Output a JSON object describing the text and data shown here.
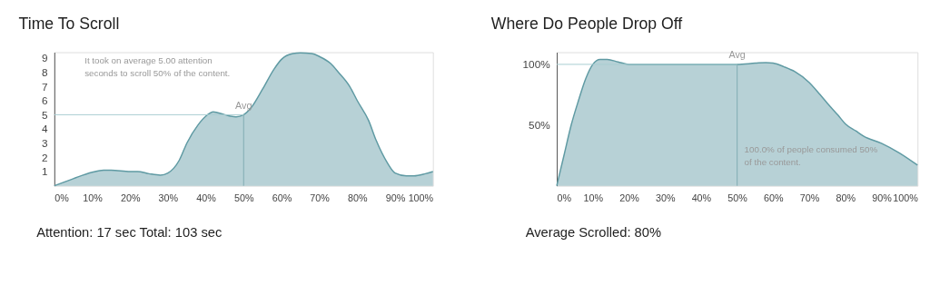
{
  "chart_data": [
    {
      "type": "area",
      "title": "Time To Scroll",
      "x": [
        0,
        5,
        10,
        13,
        15,
        20,
        22,
        25,
        28,
        30,
        33,
        35,
        38,
        40,
        42,
        45,
        48,
        50,
        52,
        55,
        58,
        60,
        63,
        65,
        68,
        70,
        73,
        75,
        78,
        80,
        83,
        85,
        88,
        90,
        93,
        95,
        98,
        100
      ],
      "series": [
        {
          "color": "#5f9aa3",
          "values": [
            0,
            0.5,
            0.95,
            1.1,
            1.1,
            1.0,
            1.0,
            0.85,
            0.75,
            0.9,
            1.8,
            3.0,
            4.3,
            4.9,
            5.2,
            5.0,
            4.85,
            5.0,
            5.5,
            6.8,
            8.2,
            8.9,
            9.3,
            9.35,
            9.3,
            9.1,
            8.6,
            8.0,
            7.0,
            6.0,
            4.6,
            3.2,
            1.6,
            0.9,
            0.7,
            0.7,
            0.85,
            1.0
          ]
        }
      ],
      "xlim": [
        0,
        100
      ],
      "xticks": [
        {
          "value": 0,
          "label": "0%"
        },
        {
          "value": 10,
          "label": "10%"
        },
        {
          "value": 20,
          "label": "20%"
        },
        {
          "value": 30,
          "label": "30%"
        },
        {
          "value": 40,
          "label": "40%"
        },
        {
          "value": 50,
          "label": "50%"
        },
        {
          "value": 60,
          "label": "60%"
        },
        {
          "value": 70,
          "label": "70%"
        },
        {
          "value": 80,
          "label": "80%"
        },
        {
          "value": 90,
          "label": "90%"
        },
        {
          "value": 100,
          "label": "100%"
        }
      ],
      "ylim": [
        0,
        9.4
      ],
      "yticks": [
        1,
        2,
        3,
        4,
        5,
        6,
        7,
        8,
        9
      ],
      "ref_lines": [
        {
          "axis": "x",
          "value": 50,
          "label": "Avg",
          "color": "#7fabb2"
        },
        {
          "axis": "y",
          "value": 5,
          "color": "#a8cdd1"
        }
      ],
      "annotations": [
        "It took on average 5.00 attention\nseconds to scroll 50% of the content.",
        "Attention: 17 sec Total: 103 sec"
      ],
      "grid": false
    },
    {
      "type": "area",
      "title": "Where Do People Drop Off",
      "x": [
        0,
        2,
        4,
        6,
        8,
        10,
        12,
        14,
        17,
        20,
        30,
        40,
        50,
        55,
        58,
        60,
        63,
        66,
        70,
        73,
        75,
        78,
        80,
        83,
        85,
        90,
        95,
        100
      ],
      "series": [
        {
          "color": "#5f9aa3",
          "values": [
            0,
            25,
            50,
            70,
            88,
            100,
            104,
            104,
            102,
            100,
            100,
            100,
            100,
            101,
            101.5,
            101,
            98,
            94,
            85,
            75,
            68,
            58,
            51,
            45,
            41,
            35,
            27,
            17
          ]
        }
      ],
      "xlim": [
        0,
        100
      ],
      "xticks": [
        {
          "value": 0,
          "label": "0%"
        },
        {
          "value": 10,
          "label": "10%"
        },
        {
          "value": 20,
          "label": "20%"
        },
        {
          "value": 30,
          "label": "30%"
        },
        {
          "value": 40,
          "label": "40%"
        },
        {
          "value": 50,
          "label": "50%"
        },
        {
          "value": 60,
          "label": "60%"
        },
        {
          "value": 70,
          "label": "70%"
        },
        {
          "value": 80,
          "label": "80%"
        },
        {
          "value": 90,
          "label": "90%"
        },
        {
          "value": 100,
          "label": "100%"
        }
      ],
      "ylim": [
        0,
        110
      ],
      "yticks": [
        {
          "value": 50,
          "label": "50%"
        },
        {
          "value": 100,
          "label": "100%"
        }
      ],
      "ref_lines": [
        {
          "axis": "x",
          "value": 50,
          "label": "Avg",
          "color": "#7fabb2"
        },
        {
          "axis": "y",
          "value": 100,
          "color": "#a8cdd1"
        }
      ],
      "annotations": [
        "100.0% of people consumed 50%\nof the content.",
        "Average Scrolled: 80%"
      ],
      "grid": false
    }
  ]
}
